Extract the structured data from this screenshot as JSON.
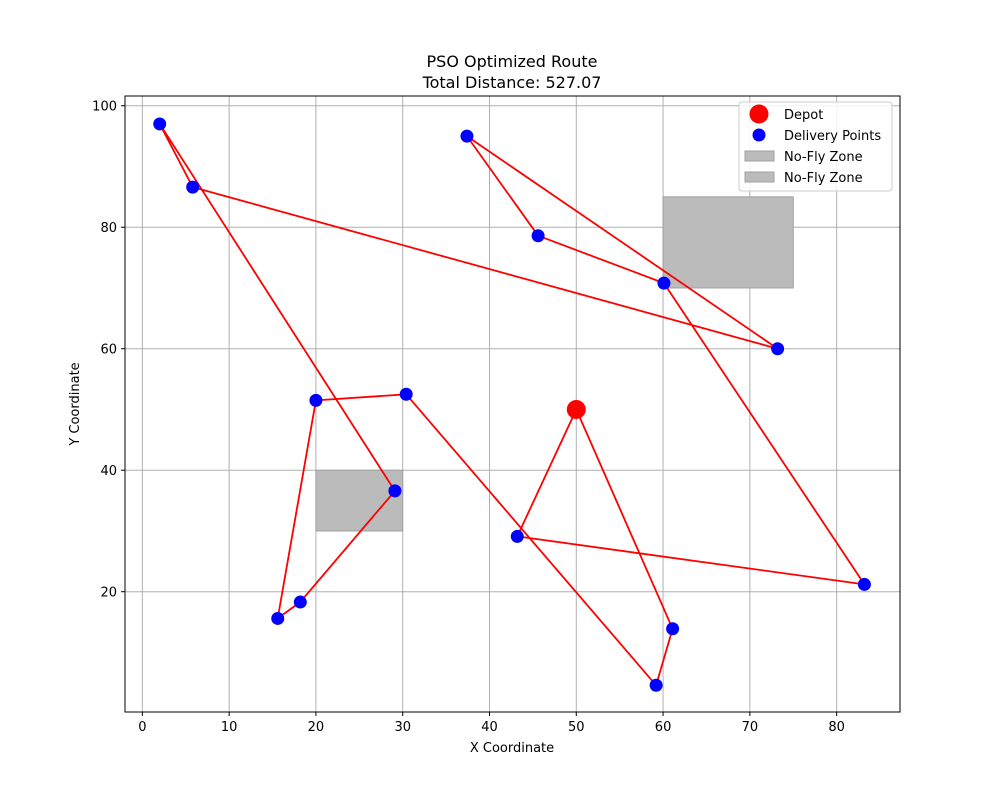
{
  "chart_data": {
    "type": "scatter",
    "title": "PSO Optimized Route",
    "subtitle": "Total Distance: 527.07",
    "xlabel": "X Coordinate",
    "ylabel": "Y Coordinate",
    "xlim": [
      -2,
      87.3
    ],
    "ylim": [
      0.2,
      101.6
    ],
    "xticks": [
      0,
      10,
      20,
      30,
      40,
      50,
      60,
      70,
      80
    ],
    "yticks": [
      20,
      40,
      60,
      80,
      100
    ],
    "grid": true,
    "legend_position": "top-right",
    "legend": [
      {
        "label": "Depot",
        "kind": "marker",
        "color": "#ff0000"
      },
      {
        "label": "Delivery Points",
        "kind": "marker",
        "color": "#0000ff"
      },
      {
        "label": "No-Fly Zone",
        "kind": "patch",
        "color": "#bbbbbb"
      },
      {
        "label": "No-Fly Zone",
        "kind": "patch",
        "color": "#bbbbbb"
      }
    ],
    "depot": {
      "x": 50,
      "y": 50,
      "color": "#ff0000"
    },
    "delivery_points": [
      {
        "x": 2.0,
        "y": 97.0
      },
      {
        "x": 5.8,
        "y": 86.6
      },
      {
        "x": 37.4,
        "y": 95.0
      },
      {
        "x": 45.6,
        "y": 78.6
      },
      {
        "x": 60.1,
        "y": 70.8
      },
      {
        "x": 73.2,
        "y": 60.0
      },
      {
        "x": 20.0,
        "y": 51.5
      },
      {
        "x": 30.4,
        "y": 52.5
      },
      {
        "x": 29.1,
        "y": 36.6
      },
      {
        "x": 43.2,
        "y": 29.1
      },
      {
        "x": 83.2,
        "y": 21.2
      },
      {
        "x": 18.2,
        "y": 18.3
      },
      {
        "x": 15.6,
        "y": 15.6
      },
      {
        "x": 61.1,
        "y": 13.9
      },
      {
        "x": 59.2,
        "y": 4.6
      }
    ],
    "point_color": "#0000ff",
    "route": [
      [
        50,
        50
      ],
      [
        61.1,
        13.9
      ],
      [
        59.2,
        4.6
      ],
      [
        30.4,
        52.5
      ],
      [
        20.0,
        51.5
      ],
      [
        15.6,
        15.6
      ],
      [
        18.2,
        18.3
      ],
      [
        29.1,
        36.6
      ],
      [
        2.0,
        97.0
      ],
      [
        5.8,
        86.6
      ],
      [
        73.2,
        60.0
      ],
      [
        37.4,
        95.0
      ],
      [
        45.6,
        78.6
      ],
      [
        60.1,
        70.8
      ],
      [
        83.2,
        21.2
      ],
      [
        43.2,
        29.1
      ],
      [
        50,
        50
      ]
    ],
    "route_color": "#ff0000",
    "no_fly_zones": [
      {
        "x0": 60,
        "x1": 75,
        "y0": 70,
        "y1": 85,
        "color": "#bbbbbb"
      },
      {
        "x0": 20,
        "x1": 30,
        "y0": 30,
        "y1": 40,
        "color": "#bbbbbb"
      }
    ]
  }
}
